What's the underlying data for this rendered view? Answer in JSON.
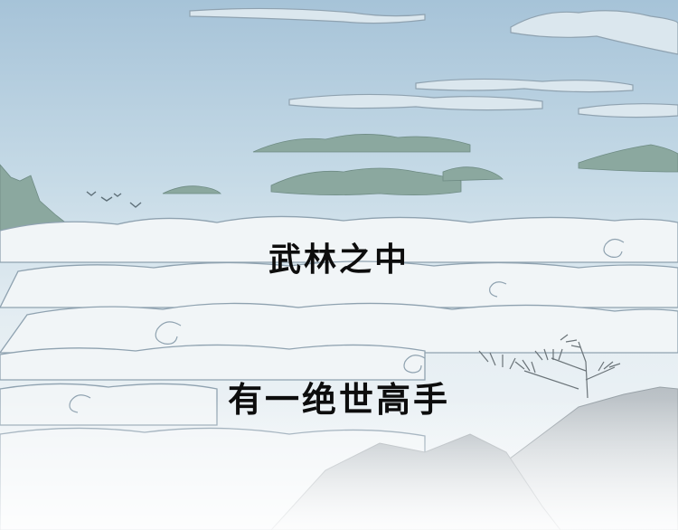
{
  "panel": {
    "caption_line_1": "武林之中",
    "caption_line_2": "有一绝世高手"
  },
  "colors": {
    "sky_top": "#a9c5d9",
    "sky_bottom": "#e9f0f4",
    "cloud_fill": "#f1f5f7",
    "cloud_line": "#8fa2b0",
    "mountain_teal": "#8ba89f",
    "rock_gray": "#c9cfd3",
    "caption_text": "#0d0d0d"
  },
  "icons": [
    "distant-mountains",
    "cloud-sea",
    "flying-birds",
    "pine-branches",
    "rocky-cliff"
  ]
}
